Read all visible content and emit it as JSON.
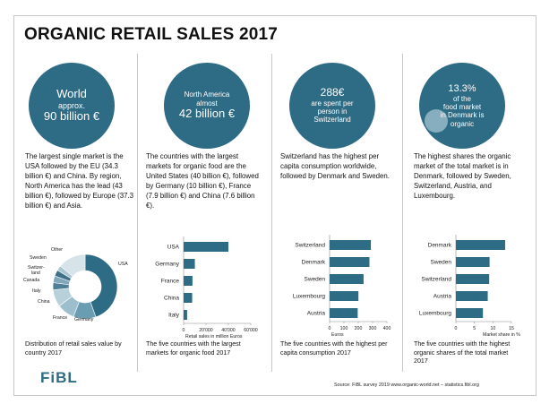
{
  "title": "ORGANIC RETAIL SALES 2017",
  "panels": [
    {
      "bubble": [
        "World",
        "approx.",
        "90 billion €"
      ],
      "text": "The largest single market is the USA followed by the EU (34.3 billion €) and China. By region, North America has the lead (43 billion €), followed by Europe (37.3 billion €) and Asia.",
      "caption": "Distribution of retail sales value by country 2017"
    },
    {
      "bubble": [
        "North America",
        "almost",
        "42 billion €"
      ],
      "text": "The countries with the largest markets for organic food are the United States (40 billion €), followed by Germany (10 billion €), France (7.9 billion €) and China (7.6 billion €).",
      "caption": "The five countries with the largest markets for organic food 2017"
    },
    {
      "bubble": [
        "288€",
        "are spent per",
        "person in",
        "Switzerland"
      ],
      "text": "Switzerland has the highest per capita consumption worldwide, followed by Denmark and Sweden.",
      "caption": "The five countries with the highest per capita consumption 2017"
    },
    {
      "bubble": [
        "13.3%",
        "of  the",
        "food market",
        "in Denmark is",
        "organic"
      ],
      "text": "The highest shares the organic market of the total market is in Denmark, followed by Sweden, Switzerland, Austria, and Luxembourg.",
      "caption": "The five countries with the highest organic shares of the total market 2017"
    }
  ],
  "chart_data": [
    {
      "type": "pie",
      "donut": true,
      "categories": [
        "USA",
        "Germany",
        "France",
        "China",
        "Italy",
        "Canada",
        "Switzer-land",
        "Sweden",
        "Other"
      ],
      "values": [
        44.6,
        11.3,
        8.9,
        8.6,
        3.6,
        3.4,
        3.1,
        2.6,
        13.9
      ],
      "colors": [
        "#2e6b84",
        "#6b9db2",
        "#9dbfcd",
        "#b7d0da",
        "#4f7f95",
        "#81a8ba",
        "#3e7188",
        "#a9c6d3",
        "#d6e4ea"
      ]
    },
    {
      "type": "bar",
      "orientation": "horizontal",
      "categories": [
        "USA",
        "Germany",
        "France",
        "China",
        "Italy"
      ],
      "values": [
        40011,
        10040,
        7921,
        7646,
        3137
      ],
      "xlabel": "Retail sales in million Euros",
      "xlim": [
        0,
        60000
      ],
      "xticks": [
        "0",
        "20'000",
        "40'000",
        "60'000"
      ],
      "color": "#2e6b84"
    },
    {
      "type": "bar",
      "orientation": "horizontal",
      "categories": [
        "Switzerland",
        "Denmark",
        "Sweden",
        "Luxembourg",
        "Austria"
      ],
      "values": [
        288,
        278,
        237,
        201,
        196
      ],
      "xlabel": "Euros",
      "xlim": [
        0,
        400
      ],
      "xticks": [
        "0",
        "100",
        "200",
        "300",
        "400"
      ],
      "color": "#2e6b84"
    },
    {
      "type": "bar",
      "orientation": "horizontal",
      "categories": [
        "Denmark",
        "Sweden",
        "Switzerland",
        "Austria",
        "Luxembourg"
      ],
      "values": [
        13.3,
        9.1,
        9.0,
        8.6,
        7.3
      ],
      "xlabel": "Market share in %",
      "xlim": [
        0,
        15
      ],
      "xticks": [
        "0",
        "5",
        "10",
        "15"
      ],
      "color": "#2e6b84"
    }
  ],
  "logo": "FiBL",
  "source": "Source: FiBL survey 2019  www.organic-world.net – statistics.fibl.org"
}
